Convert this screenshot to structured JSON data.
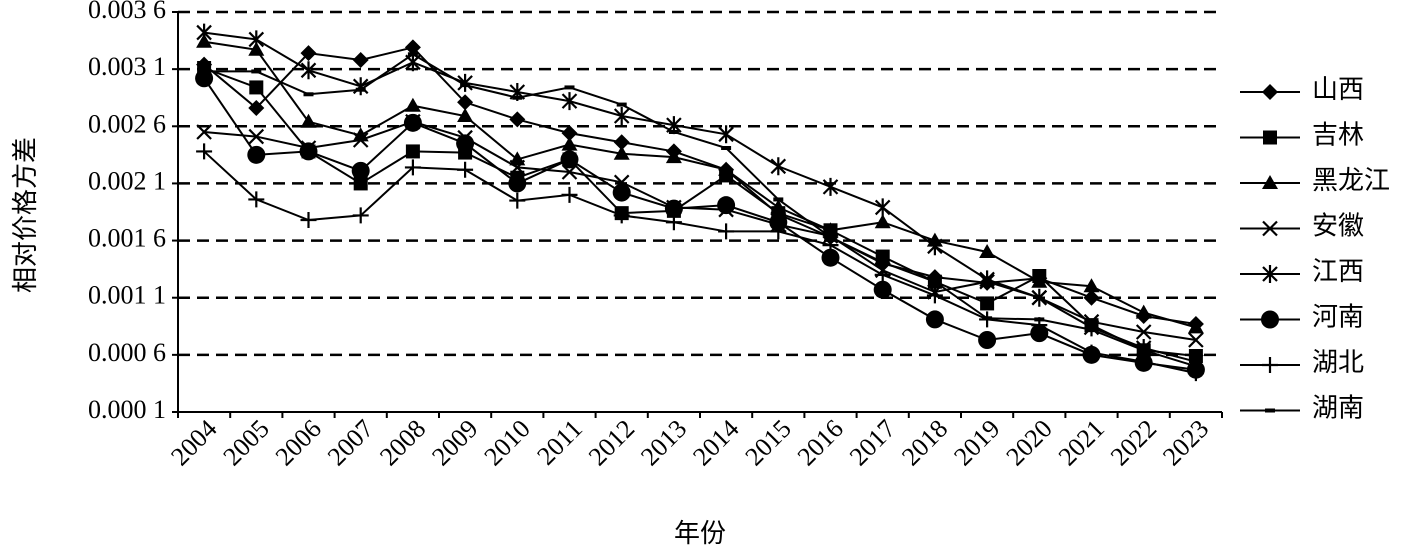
{
  "chart_data": {
    "type": "line",
    "y_label": "相对价格方差",
    "x_label": "年份",
    "categories": [
      "2004",
      "2005",
      "2006",
      "2007",
      "2008",
      "2009",
      "2010",
      "2011",
      "2012",
      "2013",
      "2014",
      "2015",
      "2016",
      "2017",
      "2018",
      "2019",
      "2020",
      "2021",
      "2022",
      "2023"
    ],
    "ylim": [
      0.0001,
      0.0036
    ],
    "yticks": [
      {
        "value": 0.0001,
        "label": "0.000 1"
      },
      {
        "value": 0.0006,
        "label": "0.000 6"
      },
      {
        "value": 0.0011,
        "label": "0.001 1"
      },
      {
        "value": 0.0016,
        "label": "0.001 6"
      },
      {
        "value": 0.0021,
        "label": "0.002 1"
      },
      {
        "value": 0.0026,
        "label": "0.002 6"
      },
      {
        "value": 0.0031,
        "label": "0.003 1"
      },
      {
        "value": 0.0036,
        "label": "0.003 6"
      }
    ],
    "grid": true,
    "legend": "right",
    "series": [
      {
        "name": "山西",
        "color": "#000000",
        "marker": "diamond",
        "values": [
          0.00314,
          0.00276,
          0.00324,
          0.00318,
          0.00329,
          0.00281,
          0.00266,
          0.00254,
          0.00246,
          0.00238,
          0.00222,
          0.00183,
          0.00163,
          0.0014,
          0.00128,
          0.00123,
          0.00127,
          0.0011,
          0.00094,
          0.00087
        ]
      },
      {
        "name": "吉林",
        "color": "#000000",
        "marker": "square",
        "values": [
          0.00311,
          0.00294,
          0.00238,
          0.0021,
          0.00238,
          0.00237,
          0.00215,
          0.00231,
          0.00184,
          0.00186,
          0.00217,
          0.00184,
          0.00169,
          0.00146,
          0.00124,
          0.00105,
          0.00129,
          0.00086,
          0.00064,
          0.00059
        ]
      },
      {
        "name": "黑龙江",
        "color": "#000000",
        "marker": "triangle",
        "values": [
          0.00334,
          0.00327,
          0.00264,
          0.00252,
          0.00278,
          0.00269,
          0.00231,
          0.00244,
          0.00236,
          0.00233,
          0.00222,
          0.00189,
          0.00169,
          0.00176,
          0.0016,
          0.0015,
          0.00124,
          0.0012,
          0.00097,
          0.00084
        ]
      },
      {
        "name": "安徽",
        "color": "#000000",
        "marker": "x",
        "values": [
          0.00255,
          0.00251,
          0.00241,
          0.00248,
          0.00264,
          0.0025,
          0.00224,
          0.0022,
          0.00211,
          0.00189,
          0.00187,
          0.00174,
          0.00164,
          0.00134,
          0.00115,
          0.00124,
          0.0011,
          0.00089,
          0.0008,
          0.00073
        ]
      },
      {
        "name": "江西",
        "color": "#000000",
        "marker": "asterisk",
        "values": [
          0.00342,
          0.00336,
          0.00309,
          0.00295,
          0.00316,
          0.00298,
          0.0029,
          0.00282,
          0.00269,
          0.00261,
          0.00253,
          0.00225,
          0.00207,
          0.00189,
          0.00155,
          0.00126,
          0.0011,
          0.00084,
          0.00066,
          0.00054
        ]
      },
      {
        "name": "河南",
        "color": "#000000",
        "marker": "circle",
        "values": [
          0.00302,
          0.00235,
          0.00238,
          0.00221,
          0.00263,
          0.00245,
          0.0021,
          0.00231,
          0.00202,
          0.00188,
          0.00191,
          0.00176,
          0.00145,
          0.00117,
          0.00091,
          0.00073,
          0.00079,
          0.0006,
          0.00053,
          0.00047
        ]
      },
      {
        "name": "湖北",
        "color": "#000000",
        "marker": "plus",
        "values": [
          0.00238,
          0.00196,
          0.00178,
          0.00182,
          0.00224,
          0.00222,
          0.00195,
          0.002,
          0.00182,
          0.00176,
          0.00168,
          0.00168,
          0.00156,
          0.0013,
          0.00112,
          0.00091,
          0.00086,
          0.00062,
          0.00054,
          0.00044
        ]
      },
      {
        "name": "湖南",
        "color": "#000000",
        "marker": "dash",
        "values": [
          0.00308,
          0.00308,
          0.00288,
          0.00292,
          0.00323,
          0.00296,
          0.00285,
          0.00294,
          0.00279,
          0.00255,
          0.00241,
          0.00196,
          0.00163,
          0.00141,
          0.00124,
          0.00092,
          0.00091,
          0.00082,
          0.00064,
          0.0005
        ]
      }
    ]
  }
}
